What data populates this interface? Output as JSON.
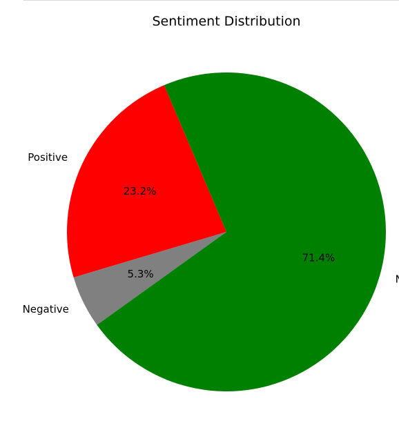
{
  "chart_data": {
    "type": "pie",
    "title": "Sentiment Distribution",
    "start_angle_deg": 113,
    "direction": "counterclockwise",
    "slices": [
      {
        "label": "Positive",
        "value": 23.2,
        "pct_label": "23.2%",
        "color": "#ff0000"
      },
      {
        "label": "Negative",
        "value": 5.3,
        "pct_label": "5.3%",
        "color": "#808080"
      },
      {
        "label": "Neutral",
        "value": 71.4,
        "pct_label": "71.4%",
        "color": "#008000"
      }
    ]
  }
}
